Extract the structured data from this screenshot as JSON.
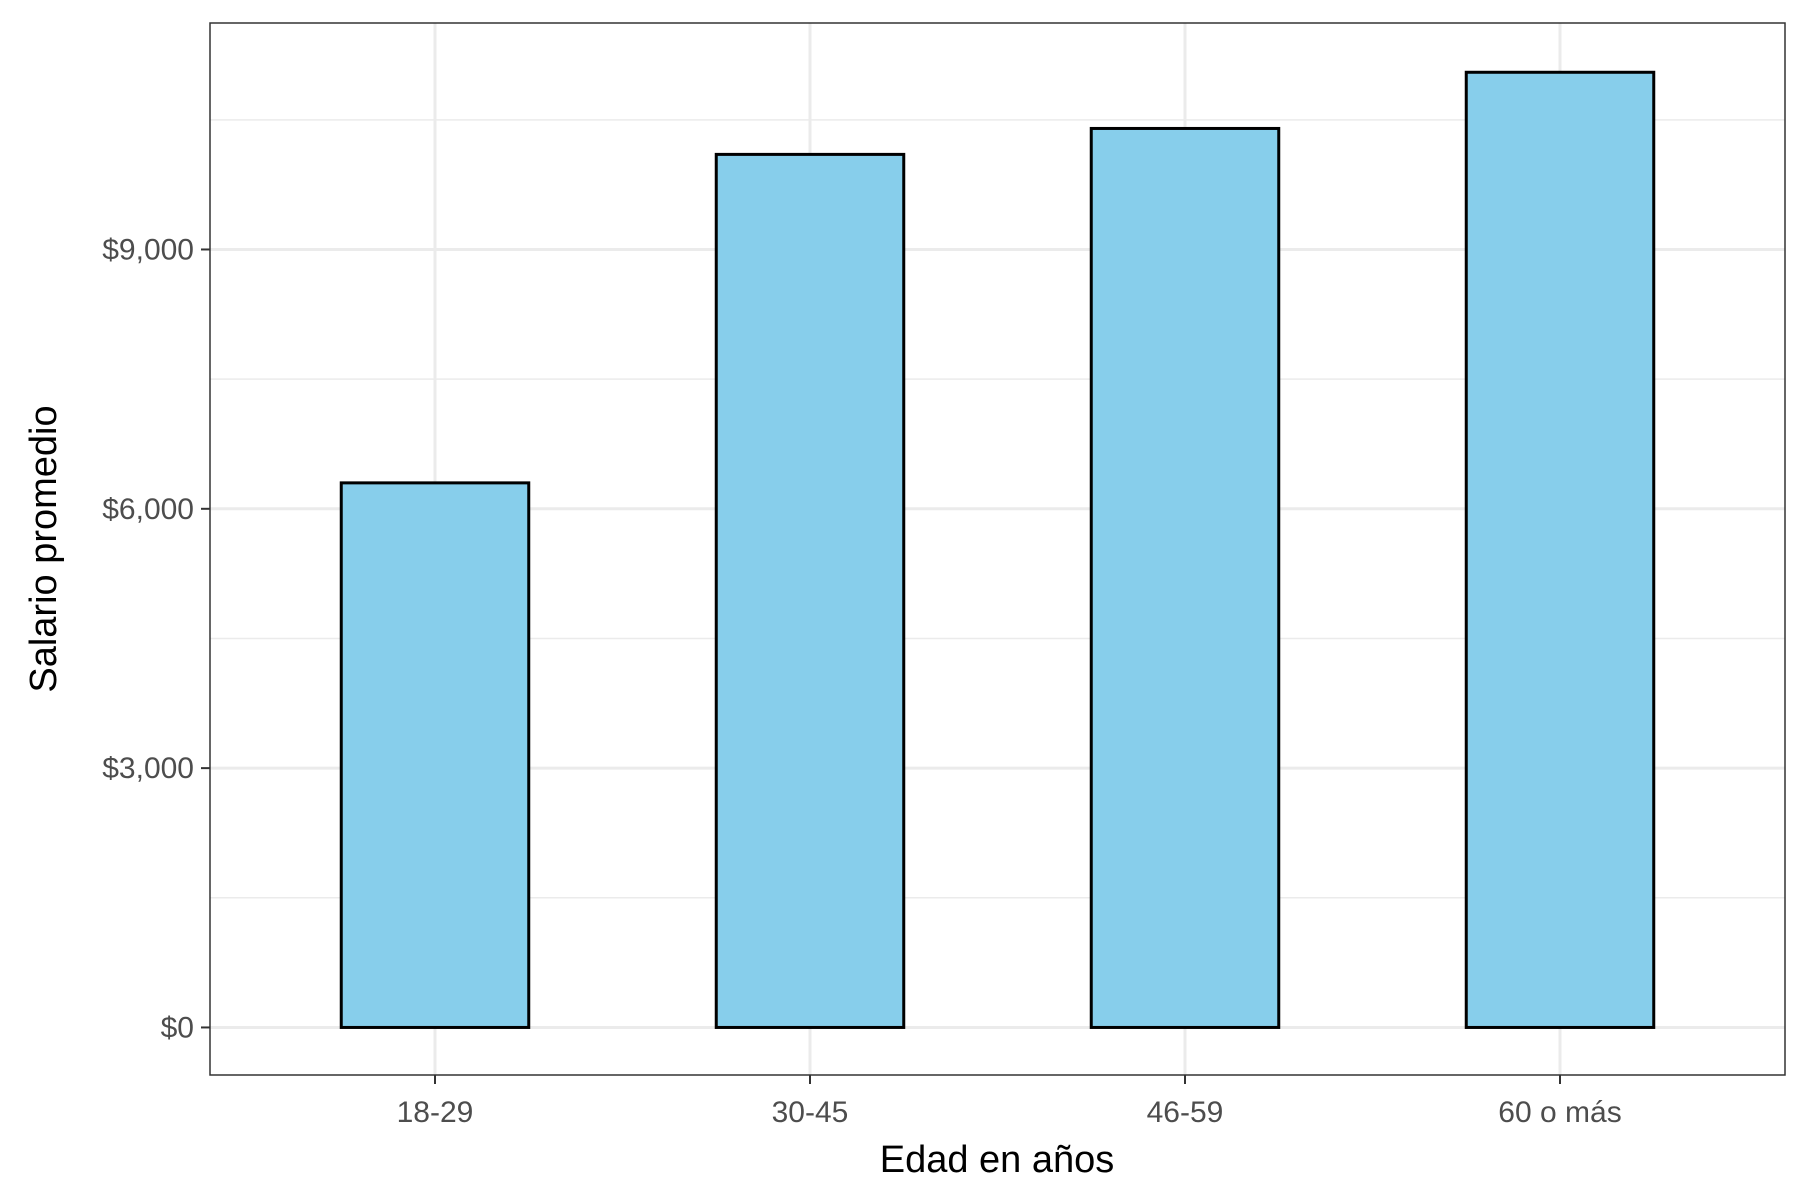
{
  "chart_data": {
    "type": "bar",
    "categories": [
      "18-29",
      "30-45",
      "46-59",
      "60 o más"
    ],
    "values": [
      6300,
      10100,
      10400,
      11050
    ],
    "xlabel": "Edad en años",
    "ylabel": "Salario promedio",
    "ylim": [
      -550,
      11620
    ],
    "y_ticks": [
      0,
      3000,
      6000,
      9000
    ],
    "y_tick_labels": [
      "$0",
      "$3,000",
      "$6,000",
      "$9,000"
    ],
    "grid": true,
    "bar_fill_color": "#87CEEB",
    "bar_stroke_color": "#000000",
    "panel_border_color": "#333333",
    "grid_color": "#ebebeb"
  }
}
